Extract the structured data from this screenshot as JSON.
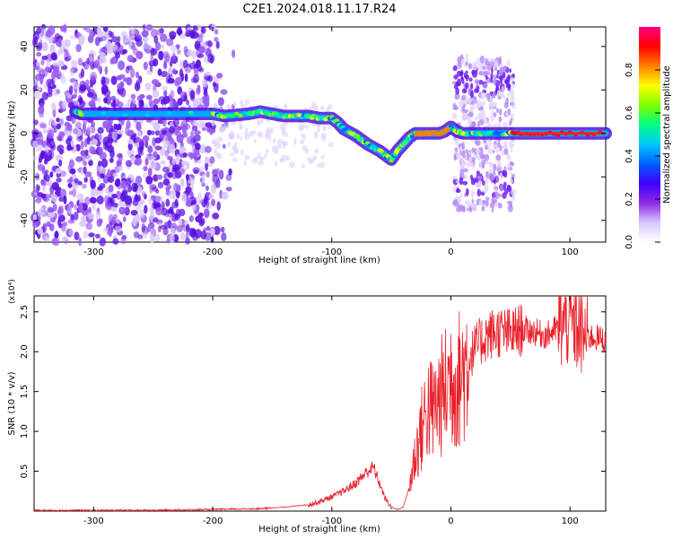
{
  "title": "C2E1.2024.018.11.17.R24",
  "chart_data": [
    {
      "type": "heatmap",
      "title": "C2E1.2024.018.11.17.R24",
      "xlabel": "Height of straight line (km)",
      "ylabel": "Frequency (Hz)",
      "xlim": [
        -350,
        130
      ],
      "ylim": [
        -50,
        49
      ],
      "x_ticks": [
        -300,
        -200,
        -100,
        0,
        100
      ],
      "y_ticks": [
        -40,
        -20,
        0,
        20,
        40
      ],
      "colorbar": {
        "label": "Normalized spectral amplitude",
        "range": [
          0,
          1
        ],
        "ticks": [
          0.0,
          0.2,
          0.4,
          0.6,
          0.8
        ],
        "colors": [
          "#ffffff",
          "#d8c8ff",
          "#8a2be2",
          "#4000ff",
          "#0060ff",
          "#00c8ff",
          "#00ff80",
          "#80ff00",
          "#ffff00",
          "#ff8000",
          "#ff0000",
          "#ff0080"
        ]
      },
      "trace": {
        "x": [
          -315,
          -310,
          -200,
          -190,
          -170,
          -160,
          -150,
          -140,
          -130,
          -120,
          -110,
          -100,
          -95,
          -90,
          -80,
          -70,
          -60,
          -55,
          -50,
          -45,
          -40,
          -35,
          -30,
          -25,
          -20,
          -15,
          -10,
          -5,
          0,
          5,
          10,
          20,
          30,
          40,
          50,
          60,
          80,
          100,
          130
        ],
        "y": [
          10,
          9,
          9,
          8,
          9,
          10,
          9,
          8,
          8,
          8,
          7,
          7,
          5,
          2,
          -1,
          -5,
          -8,
          -10,
          -12,
          -8,
          -5,
          -2,
          0,
          0,
          0,
          0,
          0,
          1,
          3,
          1,
          0,
          0,
          0,
          0,
          0,
          0,
          0,
          0,
          0
        ]
      },
      "noise_region_x": [
        -350,
        -180
      ],
      "burst_region_x": [
        3,
        53
      ]
    },
    {
      "type": "line",
      "xlabel": "Height of straight line (km)",
      "ylabel": "SNR (10 * v/v)",
      "yscale_label": "(x10⁴)",
      "xlim": [
        -350,
        130
      ],
      "ylim": [
        0,
        2.7
      ],
      "x_ticks": [
        -300,
        -200,
        -100,
        0,
        100
      ],
      "y_ticks": [
        0.5,
        1.0,
        1.5,
        2.0,
        2.5
      ],
      "series": [
        {
          "color": "#e8202a",
          "x": [
            -350,
            -300,
            -250,
            -200,
            -160,
            -140,
            -120,
            -110,
            -100,
            -90,
            -80,
            -70,
            -65,
            -60,
            -55,
            -50,
            -45,
            -40,
            -35,
            -30,
            -25,
            -20,
            -15,
            -10,
            -5,
            0,
            5,
            10,
            15,
            20,
            30,
            40,
            50,
            60,
            70,
            80,
            90,
            100,
            110,
            120,
            130
          ],
          "y": [
            0.01,
            0.01,
            0.01,
            0.02,
            0.03,
            0.05,
            0.08,
            0.12,
            0.18,
            0.25,
            0.35,
            0.5,
            0.55,
            0.35,
            0.15,
            0.05,
            0.02,
            0.05,
            0.3,
            0.7,
            1.0,
            1.3,
            1.25,
            1.4,
            1.5,
            1.7,
            1.6,
            1.75,
            1.9,
            2.05,
            2.2,
            2.25,
            2.22,
            2.28,
            2.25,
            2.2,
            2.3,
            2.4,
            2.2,
            2.18,
            2.15
          ]
        }
      ]
    }
  ]
}
